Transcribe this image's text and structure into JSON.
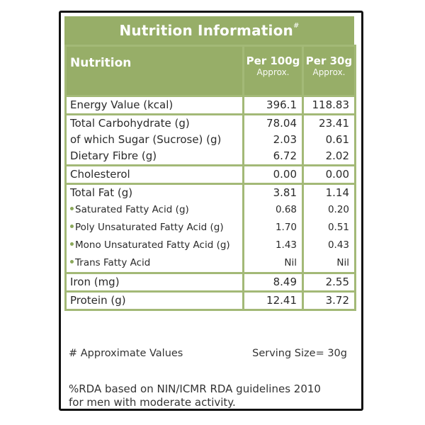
{
  "title": "Nutrition Information",
  "title_mark": "#",
  "header": {
    "name_label": "Nutrition",
    "col1_label": "Per 100g",
    "col1_sub": "Approx.",
    "col2_label": "Per 30g",
    "col2_sub": "Approx."
  },
  "groups": [
    {
      "rows": [
        {
          "name": "Energy Value (kcal)",
          "per100": "396.1",
          "per30": "118.83",
          "bullet": false
        }
      ]
    },
    {
      "rows": [
        {
          "name": "Total Carbohydrate (g)",
          "per100": "78.04",
          "per30": "23.41",
          "bullet": false
        },
        {
          "name": "of which Sugar (Sucrose) (g)",
          "per100": "2.03",
          "per30": "0.61",
          "bullet": false
        },
        {
          "name": "Dietary Fibre (g)",
          "per100": "6.72",
          "per30": "2.02",
          "bullet": false
        }
      ]
    },
    {
      "rows": [
        {
          "name": "Cholesterol",
          "per100": "0.00",
          "per30": "0.00",
          "bullet": false
        }
      ]
    },
    {
      "rows": [
        {
          "name": "Total Fat (g)",
          "per100": "3.81",
          "per30": "1.14",
          "bullet": false
        },
        {
          "name": "Saturated Fatty Acid (g)",
          "per100": "0.68",
          "per30": "0.20",
          "bullet": true
        },
        {
          "name": "Poly Unsaturated Fatty Acid (g)",
          "per100": "1.70",
          "per30": "0.51",
          "bullet": true
        },
        {
          "name": "Mono Unsaturated Fatty Acid (g)",
          "per100": "1.43",
          "per30": "0.43",
          "bullet": true
        },
        {
          "name": "Trans Fatty Acid",
          "per100": "Nil",
          "per30": "Nil",
          "bullet": true
        }
      ]
    },
    {
      "rows": [
        {
          "name": "Iron (mg)",
          "per100": "8.49",
          "per30": "2.55",
          "bullet": false
        }
      ]
    },
    {
      "rows": [
        {
          "name": "Protein (g)",
          "per100": "12.41",
          "per30": "3.72",
          "bullet": false
        }
      ]
    }
  ],
  "footnote": {
    "approx": "# Approximate Values",
    "serving": "Serving Size= 30g"
  },
  "rda_note": {
    "line1": "%RDA based on NIN/ICMR RDA guidelines 2010",
    "line2": "for men with moderate activity."
  },
  "colors": {
    "header_green": "#97ae68",
    "border_green": "#a3b977",
    "bullet_green": "#8aa75a",
    "frame": "#111111"
  }
}
